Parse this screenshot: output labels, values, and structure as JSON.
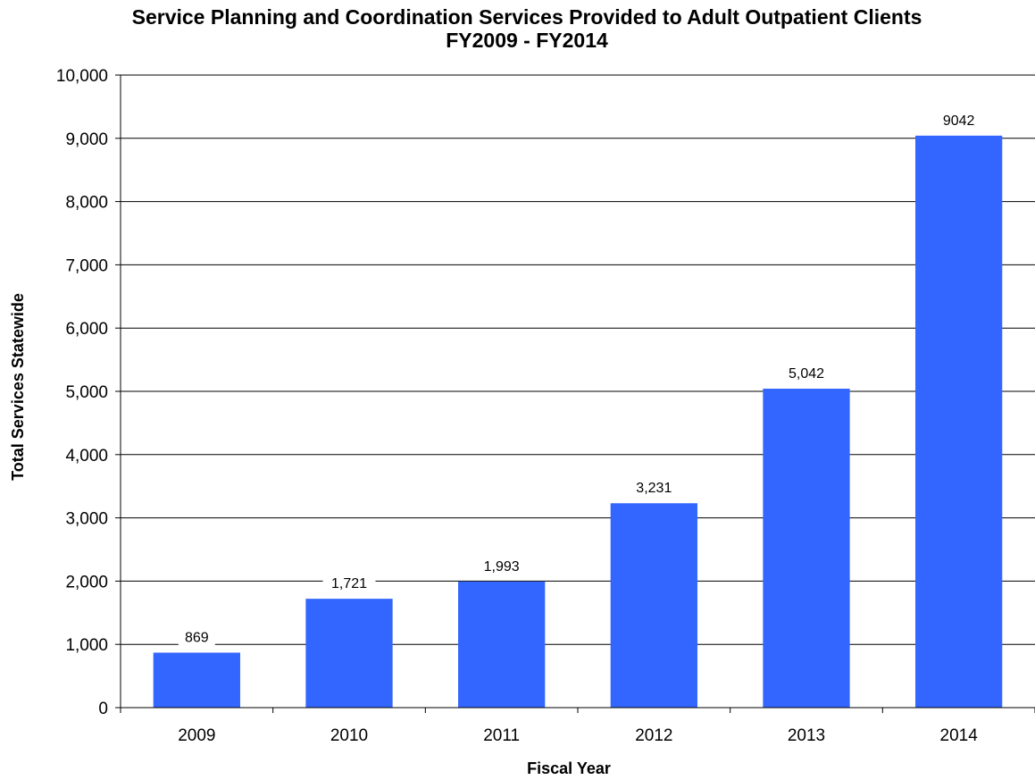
{
  "chart_data": {
    "type": "bar",
    "title": "Service Planning and Coordination Services Provided to Adult Outpatient Clients",
    "subtitle": "FY2009 - FY2014",
    "xlabel": "Fiscal Year",
    "ylabel": "Total Services Statewide",
    "categories": [
      "2009",
      "2010",
      "2011",
      "2012",
      "2013",
      "2014"
    ],
    "values": [
      869,
      1721,
      1993,
      3231,
      5042,
      9042
    ],
    "value_labels": [
      "869",
      "1,721",
      "1,993",
      "3,231",
      "5,042",
      "9042"
    ],
    "ylim": [
      0,
      10000
    ],
    "yticks": [
      0,
      1000,
      2000,
      3000,
      4000,
      5000,
      6000,
      7000,
      8000,
      9000,
      10000
    ],
    "ytick_labels": [
      "0",
      "1,000",
      "2,000",
      "3,000",
      "4,000",
      "5,000",
      "6,000",
      "7,000",
      "8,000",
      "9,000",
      "10,000"
    ],
    "grid": true,
    "legend": "none",
    "bar_color": "#3366FF",
    "grid_color": "#000000"
  }
}
